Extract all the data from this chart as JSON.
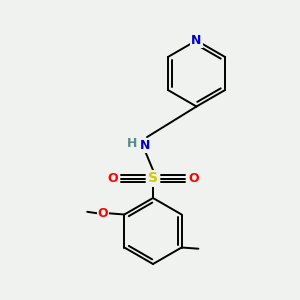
{
  "background_color": "#f0f2f0",
  "atom_colors": {
    "N": "#0000cc",
    "O": "#ff0000",
    "S": "#cccc00",
    "H": "#5a8a8a",
    "C": "#000000"
  },
  "bond_color": "#000000",
  "bond_lw": 1.4,
  "figsize": [
    3.0,
    3.0
  ],
  "dpi": 100
}
